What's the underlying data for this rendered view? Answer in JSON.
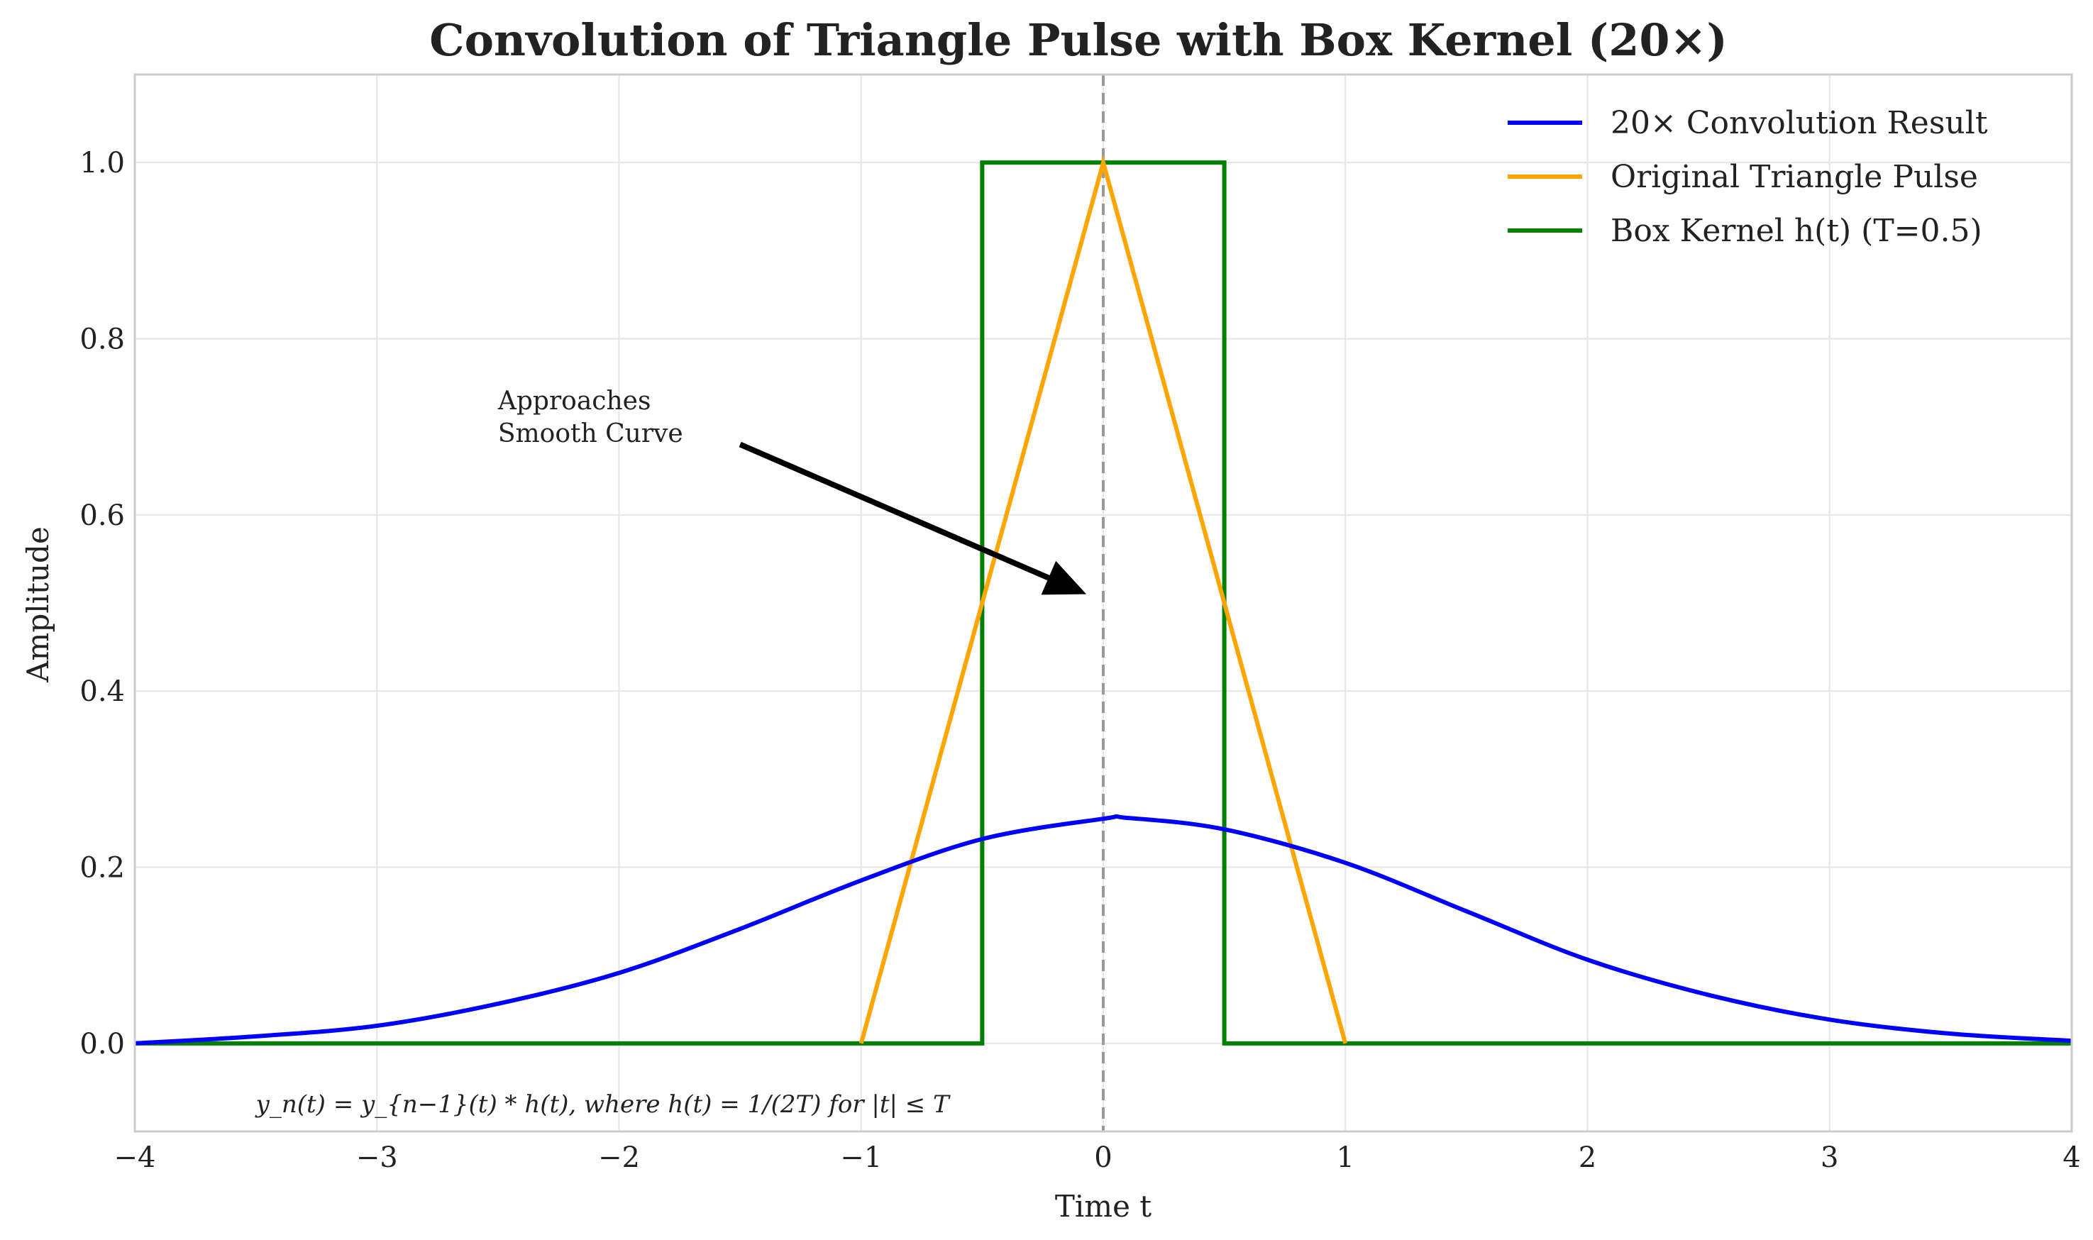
{
  "chart_data": {
    "type": "line",
    "title": "Convolution of Triangle Pulse with Box Kernel (20×)",
    "xlabel": "Time t",
    "ylabel": "Amplitude",
    "xlim": [
      -4,
      4
    ],
    "ylim": [
      -0.1,
      1.1
    ],
    "xticks": [
      -4,
      -3,
      -2,
      -1,
      0,
      1,
      2,
      3,
      4
    ],
    "xtick_labels": [
      "−4",
      "−3",
      "−2",
      "−1",
      "0",
      "1",
      "2",
      "3",
      "4"
    ],
    "yticks": [
      0.0,
      0.2,
      0.4,
      0.6,
      0.8,
      1.0
    ],
    "ytick_labels": [
      "0.0",
      "0.2",
      "0.4",
      "0.6",
      "0.8",
      "1.0"
    ],
    "grid": true,
    "legend_position": "top-right",
    "series": [
      {
        "name": "20× Convolution Result",
        "color": "#0000ff",
        "x": [
          -4,
          -3.5,
          -3,
          -2.5,
          -2,
          -1.5,
          -1,
          -0.5,
          0,
          0.1,
          0.5,
          1,
          1.5,
          2,
          2.5,
          3,
          3.5,
          4
        ],
        "y": [
          0.0,
          0.008,
          0.02,
          0.045,
          0.08,
          0.13,
          0.185,
          0.232,
          0.255,
          0.256,
          0.243,
          0.205,
          0.15,
          0.095,
          0.055,
          0.027,
          0.011,
          0.003
        ]
      },
      {
        "name": "Original Triangle Pulse",
        "color": "#ffa500",
        "x": [
          -1,
          0,
          1
        ],
        "y": [
          0,
          1,
          0
        ]
      },
      {
        "name": "Box Kernel h(t) (T=0.5)",
        "color": "#008000",
        "x": [
          -4,
          -0.5,
          -0.5,
          0.5,
          0.5,
          4
        ],
        "y": [
          0,
          0,
          1,
          1,
          0,
          0
        ]
      }
    ],
    "vline": {
      "x": 0,
      "color": "#999999",
      "style": "dashed"
    },
    "annotation": {
      "text_lines": [
        "Approaches",
        "Smooth Curve"
      ],
      "text_at": [
        -2.5,
        0.72
      ],
      "arrow_from": [
        -1.5,
        0.68
      ],
      "arrow_to": [
        -0.07,
        0.51
      ]
    },
    "formula": {
      "text": "y_n(t) = y_{n−1}(t) * h(t), where h(t) = 1/(2T) for |t| ≤ T",
      "at": [
        -3.5,
        -0.07
      ]
    }
  },
  "colors": {
    "grid": "#e6e6e6",
    "frame": "#cccccc",
    "text": "#222222"
  }
}
